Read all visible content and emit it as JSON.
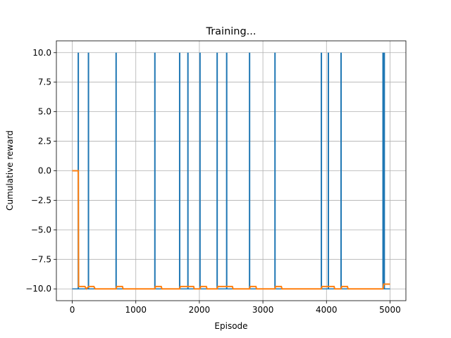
{
  "chart_data": {
    "type": "line",
    "title": "Training...",
    "xlabel": "Episode",
    "ylabel": "Cumulative reward",
    "xlim": [
      -250,
      5250
    ],
    "ylim": [
      -11.0,
      11.0
    ],
    "grid": true,
    "x_ticks": [
      0,
      1000,
      2000,
      3000,
      4000,
      5000
    ],
    "x_tick_labels": [
      "0",
      "1000",
      "2000",
      "3000",
      "4000",
      "5000"
    ],
    "y_ticks": [
      10.0,
      7.5,
      5.0,
      2.5,
      0.0,
      -2.5,
      -5.0,
      -7.5,
      -10.0
    ],
    "y_tick_labels": [
      "10.0",
      "7.5",
      "5.0",
      "2.5",
      "0.0",
      "−2.5",
      "−5.0",
      "−7.5",
      "−10.0"
    ],
    "colors": {
      "series_0": "#1f77b4",
      "series_1": "#ff7f0e"
    },
    "series": [
      {
        "baseline": -10,
        "spike_value": 10,
        "spike_episodes": [
          95,
          255,
          690,
          1300,
          1690,
          1820,
          2010,
          2280,
          2430,
          2790,
          3190,
          3920,
          4030,
          4230,
          4890,
          4910
        ],
        "x_range": [
          0,
          5000
        ]
      },
      {
        "points": [
          [
            0,
            0
          ],
          [
            95,
            0
          ],
          [
            100,
            -9.8
          ],
          [
            200,
            -9.8
          ],
          [
            220,
            -10
          ],
          [
            260,
            -9.8
          ],
          [
            340,
            -9.8
          ],
          [
            360,
            -10
          ],
          [
            690,
            -10
          ],
          [
            700,
            -9.8
          ],
          [
            790,
            -9.8
          ],
          [
            800,
            -10
          ],
          [
            1300,
            -10
          ],
          [
            1310,
            -9.8
          ],
          [
            1400,
            -9.8
          ],
          [
            1410,
            -10
          ],
          [
            1690,
            -10
          ],
          [
            1700,
            -9.8
          ],
          [
            1790,
            -9.8
          ],
          [
            1820,
            -9.8
          ],
          [
            1910,
            -9.8
          ],
          [
            1920,
            -10
          ],
          [
            2010,
            -10
          ],
          [
            2020,
            -9.8
          ],
          [
            2110,
            -9.8
          ],
          [
            2120,
            -10
          ],
          [
            2280,
            -10
          ],
          [
            2290,
            -9.8
          ],
          [
            2380,
            -9.8
          ],
          [
            2430,
            -9.8
          ],
          [
            2520,
            -9.8
          ],
          [
            2530,
            -10
          ],
          [
            2790,
            -10
          ],
          [
            2800,
            -9.8
          ],
          [
            2890,
            -9.8
          ],
          [
            2900,
            -10
          ],
          [
            3190,
            -10
          ],
          [
            3200,
            -9.8
          ],
          [
            3290,
            -9.8
          ],
          [
            3300,
            -10
          ],
          [
            3920,
            -10
          ],
          [
            3930,
            -9.8
          ],
          [
            4030,
            -9.8
          ],
          [
            4120,
            -9.8
          ],
          [
            4130,
            -10
          ],
          [
            4230,
            -10
          ],
          [
            4240,
            -9.8
          ],
          [
            4330,
            -9.8
          ],
          [
            4340,
            -10
          ],
          [
            4890,
            -10
          ],
          [
            4900,
            -9.6
          ],
          [
            5000,
            -9.6
          ]
        ]
      }
    ]
  }
}
